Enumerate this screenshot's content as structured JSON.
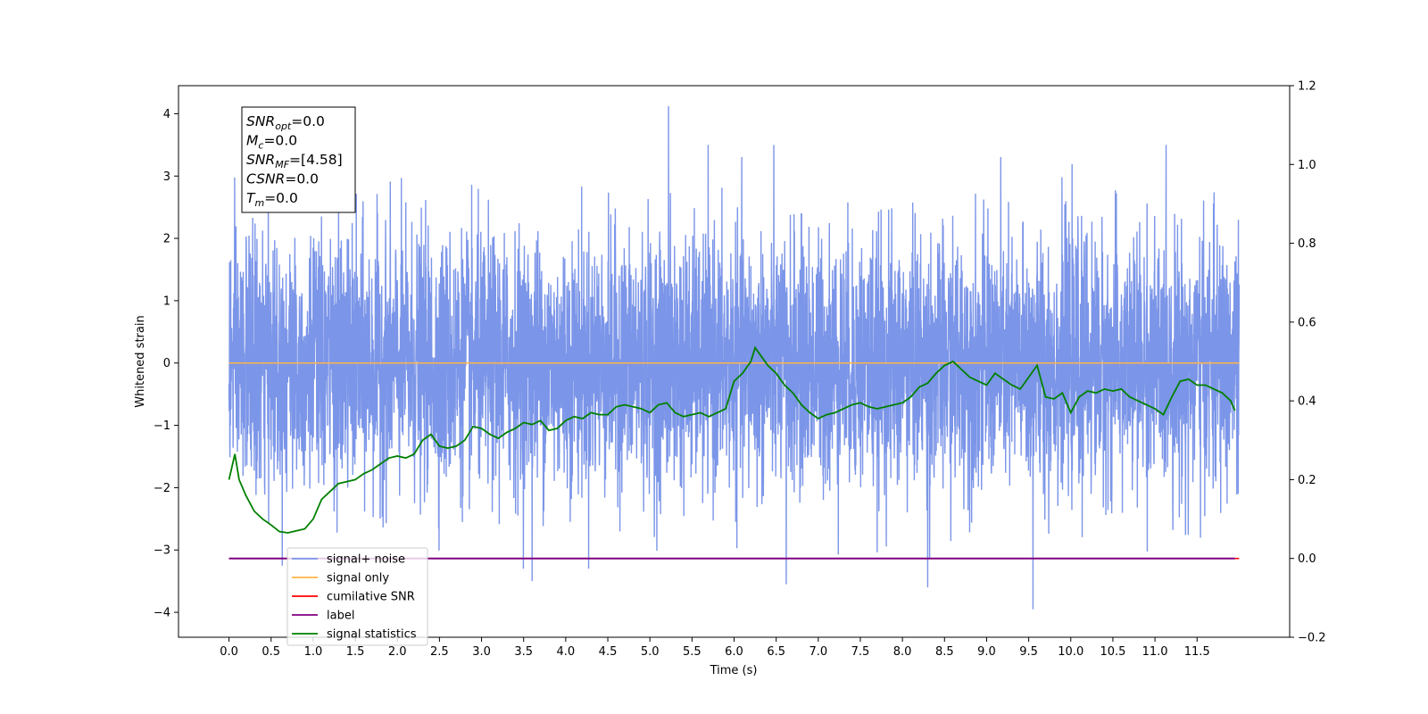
{
  "chart_data": {
    "type": "line",
    "xlabel": "Time (s)",
    "ylabel": "Whitened strain",
    "xlim": [
      -0.6,
      12.6
    ],
    "ylim": [
      -4.4,
      4.45
    ],
    "y2lim": [
      -0.2,
      1.2
    ],
    "xticks": [
      "0.0",
      "0.5",
      "1.0",
      "1.5",
      "2.0",
      "2.5",
      "3.0",
      "3.5",
      "4.0",
      "4.5",
      "5.0",
      "5.5",
      "6.0",
      "6.5",
      "7.0",
      "7.5",
      "8.0",
      "8.5",
      "9.0",
      "9.5",
      "10.0",
      "10.5",
      "11.0",
      "11.5"
    ],
    "yticks": [
      "4",
      "3",
      "2",
      "1",
      "0",
      "−1",
      "−2",
      "−3",
      "−4"
    ],
    "y2ticks": [
      "1.2",
      "1.0",
      "0.8",
      "0.6",
      "0.4",
      "0.2",
      "0.0",
      "−0.2"
    ],
    "grid": false,
    "legend_position": "lower-left",
    "annotation": {
      "lines": [
        {
          "symbol": "SNR",
          "sub": "opt",
          "rest": "=0.0"
        },
        {
          "symbol": "M",
          "sub": "c",
          "rest": "=0.0"
        },
        {
          "symbol": "SNR",
          "sub": "MF",
          "rest": "=[4.58]"
        },
        {
          "symbol": "CSNR",
          "sub": "",
          "rest": "=0.0"
        },
        {
          "symbol": "T",
          "sub": "m",
          "rest": "=0.0"
        }
      ]
    },
    "series": [
      {
        "name": "signal+ noise",
        "color": "#7b95e8",
        "axis": "left",
        "kind": "noise",
        "x_range": [
          0.0,
          12.0
        ],
        "mean": 0.0,
        "std": 1.0,
        "notable_peaks": [
          {
            "x": 5.22,
            "y": 4.12
          },
          {
            "x": 9.55,
            "y": -3.95
          },
          {
            "x": 8.3,
            "y": -3.6
          },
          {
            "x": 6.62,
            "y": -3.55
          },
          {
            "x": 3.6,
            "y": -3.5
          }
        ]
      },
      {
        "name": "signal only",
        "color": "#ffb347",
        "axis": "left",
        "x": [
          0.0,
          12.0
        ],
        "y": [
          0.0,
          0.0
        ]
      },
      {
        "name": "cumilative SNR",
        "color": "#ff0000",
        "axis": "right",
        "x": [
          0.0,
          12.0
        ],
        "y": [
          0.0,
          0.0
        ]
      },
      {
        "name": "label",
        "color": "#800080",
        "axis": "right",
        "x": [
          0.0,
          11.95
        ],
        "y": [
          0.0,
          0.0
        ]
      },
      {
        "name": "signal statistics",
        "color": "#008000",
        "axis": "right",
        "x": [
          0.0,
          0.07,
          0.12,
          0.2,
          0.3,
          0.4,
          0.5,
          0.6,
          0.7,
          0.8,
          0.9,
          1.0,
          1.1,
          1.2,
          1.3,
          1.4,
          1.5,
          1.6,
          1.7,
          1.8,
          1.9,
          2.0,
          2.1,
          2.2,
          2.3,
          2.4,
          2.5,
          2.6,
          2.7,
          2.8,
          2.9,
          3.0,
          3.1,
          3.2,
          3.3,
          3.4,
          3.5,
          3.6,
          3.7,
          3.8,
          3.9,
          4.0,
          4.1,
          4.2,
          4.3,
          4.4,
          4.5,
          4.6,
          4.7,
          4.8,
          4.9,
          5.0,
          5.1,
          5.2,
          5.3,
          5.4,
          5.5,
          5.6,
          5.7,
          5.8,
          5.9,
          6.0,
          6.1,
          6.2,
          6.25,
          6.3,
          6.4,
          6.5,
          6.6,
          6.7,
          6.8,
          6.9,
          7.0,
          7.1,
          7.2,
          7.3,
          7.4,
          7.5,
          7.6,
          7.7,
          7.8,
          7.9,
          8.0,
          8.1,
          8.2,
          8.3,
          8.4,
          8.5,
          8.6,
          8.7,
          8.8,
          8.9,
          9.0,
          9.1,
          9.2,
          9.3,
          9.4,
          9.5,
          9.6,
          9.7,
          9.8,
          9.9,
          10.0,
          10.1,
          10.2,
          10.3,
          10.4,
          10.5,
          10.6,
          10.7,
          10.8,
          10.9,
          11.0,
          11.1,
          11.2,
          11.3,
          11.4,
          11.5,
          11.6,
          11.7,
          11.8,
          11.9,
          11.95
        ],
        "y": [
          0.2,
          0.265,
          0.2,
          0.16,
          0.12,
          0.1,
          0.085,
          0.068,
          0.065,
          0.07,
          0.075,
          0.1,
          0.15,
          0.17,
          0.19,
          0.195,
          0.2,
          0.215,
          0.225,
          0.24,
          0.255,
          0.26,
          0.255,
          0.265,
          0.3,
          0.315,
          0.285,
          0.28,
          0.285,
          0.3,
          0.335,
          0.33,
          0.315,
          0.305,
          0.32,
          0.33,
          0.345,
          0.34,
          0.35,
          0.325,
          0.33,
          0.35,
          0.36,
          0.355,
          0.37,
          0.365,
          0.365,
          0.385,
          0.39,
          0.385,
          0.38,
          0.37,
          0.39,
          0.395,
          0.37,
          0.36,
          0.365,
          0.37,
          0.36,
          0.37,
          0.38,
          0.45,
          0.47,
          0.5,
          0.535,
          0.52,
          0.49,
          0.47,
          0.44,
          0.42,
          0.39,
          0.37,
          0.355,
          0.365,
          0.37,
          0.38,
          0.39,
          0.395,
          0.385,
          0.38,
          0.385,
          0.39,
          0.395,
          0.41,
          0.435,
          0.445,
          0.47,
          0.49,
          0.5,
          0.48,
          0.46,
          0.45,
          0.44,
          0.47,
          0.455,
          0.44,
          0.43,
          0.46,
          0.49,
          0.41,
          0.405,
          0.42,
          0.37,
          0.41,
          0.425,
          0.42,
          0.43,
          0.425,
          0.43,
          0.41,
          0.4,
          0.39,
          0.38,
          0.365,
          0.41,
          0.45,
          0.455,
          0.44,
          0.44,
          0.43,
          0.42,
          0.4,
          0.375
        ]
      }
    ]
  }
}
